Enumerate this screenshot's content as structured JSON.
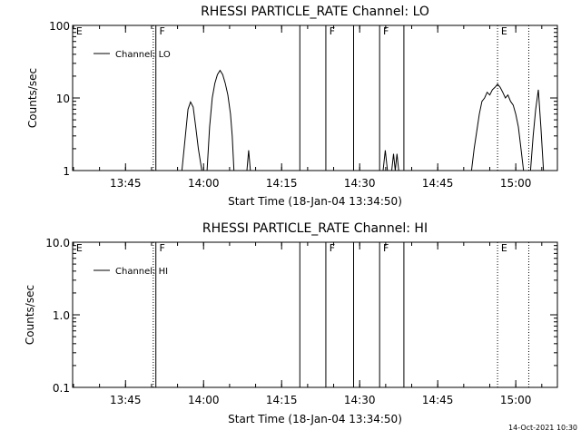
{
  "chart_data": [
    {
      "type": "line",
      "title": "RHESSI PARTICLE_RATE Channel: LO",
      "ylabel": "Counts/sec",
      "xlabel": "Start Time (18-Jan-04 13:34:50)",
      "ylim": [
        1,
        100
      ],
      "yscale": "log",
      "xlim": [
        "13:34:50",
        "15:08:00"
      ],
      "x_ticks": [
        "13:45",
        "14:00",
        "14:15",
        "14:30",
        "14:45",
        "15:00"
      ],
      "y_ticks": [
        "1",
        "10",
        "100"
      ],
      "legend": "Channel: LO",
      "legend_placement": "top-left",
      "series": [
        {
          "name": "Channel: LO",
          "segments": [
            {
              "x": [
                "13:55:50",
                "13:56:30",
                "13:57:00",
                "13:57:30",
                "13:58:00",
                "13:58:30",
                "13:59:00",
                "13:59:40"
              ],
              "y": [
                1,
                3,
                7,
                8.8,
                7.5,
                4,
                2,
                1
              ]
            },
            {
              "x": [
                "14:00:40",
                "14:01:10",
                "14:01:40",
                "14:02:10",
                "14:02:40",
                "14:03:10",
                "14:03:40",
                "14:04:10",
                "14:04:40",
                "14:05:10",
                "14:05:30",
                "14:05:50"
              ],
              "y": [
                1,
                4,
                10,
                16,
                21,
                24,
                21,
                16,
                11,
                6,
                3,
                1
              ]
            },
            {
              "x": [
                "14:08:20",
                "14:08:40",
                "14:09:00"
              ],
              "y": [
                1,
                1.9,
                1
              ]
            },
            {
              "x": [
                "14:34:30",
                "14:34:55",
                "14:35:20"
              ],
              "y": [
                1,
                1.9,
                1
              ]
            },
            {
              "x": [
                "14:36:10",
                "14:36:30",
                "14:36:50",
                "14:37:10",
                "14:37:30"
              ],
              "y": [
                1,
                1.7,
                1,
                1.7,
                1
              ]
            },
            {
              "x": [
                "14:51:30",
                "14:52:00",
                "14:52:30",
                "14:53:00",
                "14:53:30",
                "14:54:00",
                "14:54:30",
                "14:55:00",
                "14:55:30",
                "14:56:00",
                "14:56:30",
                "14:57:00",
                "14:57:30",
                "14:58:00",
                "14:58:30",
                "14:59:00",
                "14:59:30",
                "15:00:00",
                "15:00:30",
                "15:01:00",
                "15:01:30"
              ],
              "y": [
                1,
                2,
                3.5,
                6,
                9,
                10,
                12,
                11,
                13,
                14,
                15.5,
                14,
                12,
                10,
                11,
                9,
                8,
                6,
                4,
                2,
                1
              ]
            },
            {
              "x": [
                "15:02:50",
                "15:03:20",
                "15:03:50",
                "15:04:20",
                "15:04:50",
                "15:05:20"
              ],
              "y": [
                1,
                3,
                7,
                13,
                4,
                1
              ]
            }
          ]
        }
      ]
    },
    {
      "type": "line",
      "title": "RHESSI PARTICLE_RATE Channel: HI",
      "ylabel": "Counts/sec",
      "xlabel": "Start Time (18-Jan-04 13:34:50)",
      "ylim": [
        0.1,
        10
      ],
      "yscale": "log",
      "xlim": [
        "13:34:50",
        "15:08:00"
      ],
      "x_ticks": [
        "13:45",
        "14:00",
        "14:15",
        "14:30",
        "14:45",
        "15:00"
      ],
      "y_ticks": [
        "0.1",
        "1.0",
        "10.0"
      ],
      "legend": "Channel: HI",
      "legend_placement": "top-left",
      "series": [
        {
          "name": "Channel: HI",
          "segments": []
        }
      ]
    }
  ],
  "markers": {
    "solid": [
      "13:50:50",
      "14:18:30",
      "14:23:30",
      "14:28:50",
      "14:33:50",
      "14:38:30"
    ],
    "dotted": [
      "13:50:20",
      "14:56:30",
      "15:02:30"
    ],
    "labels": [
      {
        "text": "E",
        "time": "13:35:30"
      },
      {
        "text": "F",
        "time": "13:51:30"
      },
      {
        "text": "F",
        "time": "14:24:10"
      },
      {
        "text": "F",
        "time": "14:34:30"
      },
      {
        "text": "E",
        "time": "14:57:10"
      }
    ]
  },
  "footer": {
    "timestamp": "14-Oct-2021 10:30"
  }
}
